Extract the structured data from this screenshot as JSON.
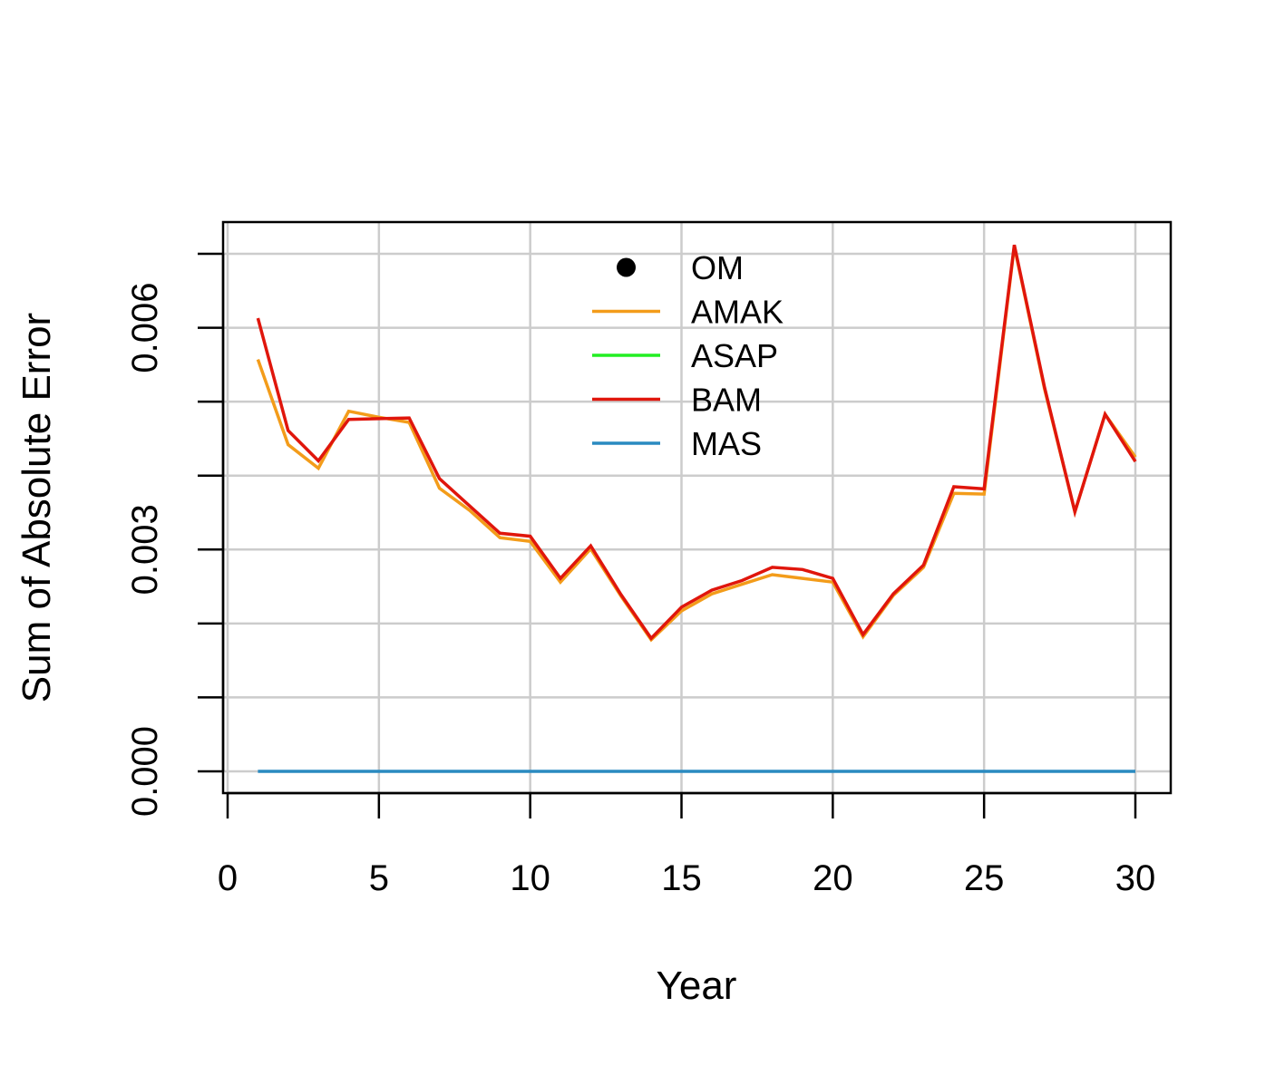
{
  "chart_data": {
    "type": "line",
    "title": "",
    "xlabel": "Year",
    "ylabel": "Sum of Absolute Error",
    "xlim": [
      0,
      30
    ],
    "ylim": [
      0,
      0.007
    ],
    "x_ticks": [
      0,
      5,
      10,
      15,
      20,
      25,
      30
    ],
    "x_tick_labels": [
      "0",
      "5",
      "10",
      "15",
      "20",
      "25",
      "30"
    ],
    "y_ticks": [
      0,
      0.001,
      0.002,
      0.003,
      0.004,
      0.005,
      0.006,
      0.007
    ],
    "y_tick_labels": [
      "0.000",
      "",
      "",
      "0.003",
      "",
      "",
      "0.006",
      ""
    ],
    "grid": true,
    "legend_position": "top-center",
    "legend": [
      {
        "name": "OM",
        "style": "point",
        "color": "#000000"
      },
      {
        "name": "AMAK",
        "style": "line",
        "color": "#F39C1A"
      },
      {
        "name": "ASAP",
        "style": "line",
        "color": "#22EE22"
      },
      {
        "name": "BAM",
        "style": "line",
        "color": "#E0160C"
      },
      {
        "name": "MAS",
        "style": "line",
        "color": "#2A8AC0"
      }
    ],
    "x": [
      1,
      2,
      3,
      4,
      5,
      6,
      7,
      8,
      9,
      10,
      11,
      12,
      13,
      14,
      15,
      16,
      17,
      18,
      19,
      20,
      21,
      22,
      23,
      24,
      25,
      26,
      27,
      28,
      29,
      30
    ],
    "series": [
      {
        "name": "MAS",
        "color": "#2A8AC0",
        "values": [
          0,
          0,
          0,
          0,
          0,
          0,
          0,
          0,
          0,
          0,
          0,
          0,
          0,
          0,
          0,
          0,
          0,
          0,
          0,
          0,
          0,
          0,
          0,
          0,
          0,
          0,
          0,
          0,
          0,
          0
        ]
      },
      {
        "name": "AMAK",
        "color": "#F39C1A",
        "values": [
          0.00557,
          0.00442,
          0.0041,
          0.00487,
          0.00479,
          0.00472,
          0.00383,
          0.00353,
          0.00316,
          0.00311,
          0.00256,
          0.00301,
          0.00237,
          0.00178,
          0.00217,
          0.0024,
          0.00253,
          0.00266,
          0.00261,
          0.00256,
          0.00182,
          0.00238,
          0.00276,
          0.00376,
          0.00375,
          0.0071,
          0.00517,
          0.00351,
          0.00483,
          0.00425
        ]
      },
      {
        "name": "BAM",
        "color": "#E0160C",
        "values": [
          0.00613,
          0.00461,
          0.0042,
          0.00476,
          0.00477,
          0.00478,
          0.00396,
          0.00359,
          0.00322,
          0.00318,
          0.00261,
          0.00305,
          0.00239,
          0.0018,
          0.00222,
          0.00245,
          0.00258,
          0.00276,
          0.00273,
          0.00261,
          0.00185,
          0.0024,
          0.00279,
          0.00385,
          0.00382,
          0.00712,
          0.00519,
          0.00351,
          0.00483,
          0.00419
        ]
      }
    ]
  }
}
